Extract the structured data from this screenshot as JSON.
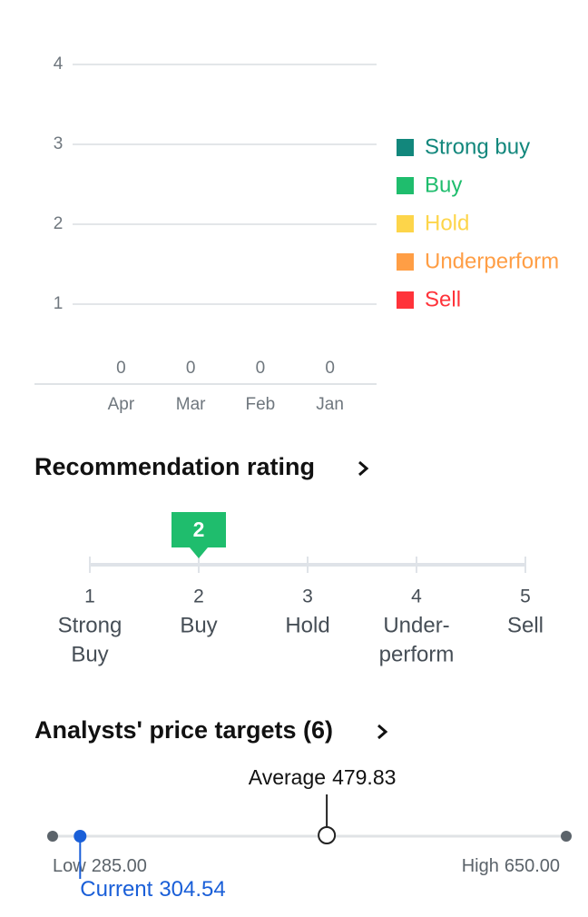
{
  "chart_data": {
    "type": "bar",
    "stacked": true,
    "categories": [
      "Apr",
      "Mar",
      "Feb",
      "Jan"
    ],
    "totals": [
      0,
      0,
      0,
      0
    ],
    "series": [
      {
        "name": "Strong buy",
        "color": "#12877c",
        "values": [
          0,
          0,
          0,
          0
        ]
      },
      {
        "name": "Buy",
        "color": "#1fbd6d",
        "values": [
          0,
          0,
          0,
          0
        ]
      },
      {
        "name": "Hold",
        "color": "#fdd54a",
        "values": [
          0,
          0,
          0,
          0
        ]
      },
      {
        "name": "Underperform",
        "color": "#ff9e45",
        "values": [
          0,
          0,
          0,
          0
        ]
      },
      {
        "name": "Sell",
        "color": "#ff333a",
        "values": [
          0,
          0,
          0,
          0
        ]
      }
    ],
    "ylim": [
      0,
      4
    ],
    "yticks": [
      1,
      2,
      3,
      4
    ],
    "grid": true
  },
  "recommendation": {
    "title": "Recommendation rating",
    "value": 2,
    "scale": [
      {
        "value": 1,
        "label": [
          "Strong",
          "Buy"
        ]
      },
      {
        "value": 2,
        "label": [
          "Buy"
        ]
      },
      {
        "value": 3,
        "label": [
          "Hold"
        ]
      },
      {
        "value": 4,
        "label": [
          "Under-",
          "perform"
        ]
      },
      {
        "value": 5,
        "label": [
          "Sell"
        ]
      }
    ]
  },
  "price_targets": {
    "title": "Analysts' price targets (6)",
    "low": {
      "name": "Low",
      "value": 285,
      "label": "285.00"
    },
    "high": {
      "name": "High",
      "value": 650,
      "label": "650.00"
    },
    "average": {
      "name": "Average",
      "value": 479.83,
      "label": "479.83"
    },
    "current": {
      "name": "Current",
      "value": 304.54,
      "label": "304.54"
    }
  }
}
